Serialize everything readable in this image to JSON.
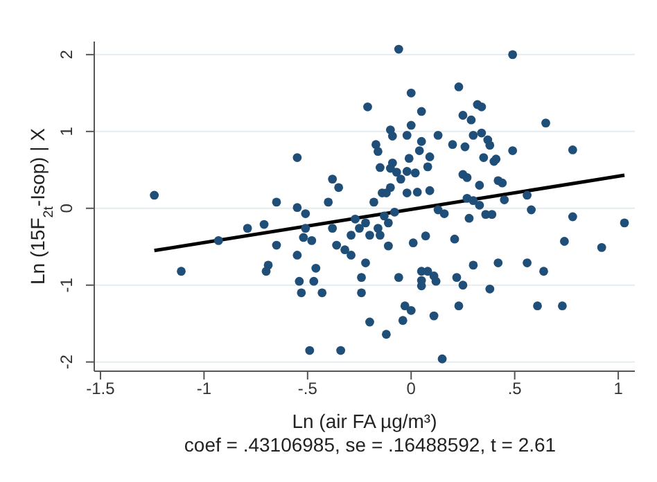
{
  "chart_data": {
    "type": "scatter",
    "xlabel": "Ln (air FA µg/m³)",
    "ylabel": "Ln (15F$_{2t}$-Isop) | X",
    "annotations": [
      "coef = .43106985, se = .16488592, t = 2.61"
    ],
    "xlim": [
      -1.53,
      1.08
    ],
    "xticks": [
      -1.5,
      -1,
      {
        "value": -0.5,
        "label": "-.5"
      },
      0,
      {
        "value": 0.5,
        "label": ".5"
      },
      1
    ],
    "ylim": [
      -2.12,
      2.17
    ],
    "yticks": [
      -2,
      -1,
      0,
      1,
      2
    ],
    "grid": "y",
    "series": [
      {
        "marker": "circle",
        "color": "#1f4e79",
        "x": [
          -1.24,
          -1.11,
          -0.93,
          -0.79,
          -0.71,
          -0.69,
          -0.7,
          -0.65,
          -0.65,
          -0.55,
          -0.55,
          -0.55,
          -0.54,
          -0.53,
          -0.52,
          -0.51,
          -0.51,
          -0.49,
          -0.48,
          -0.47,
          -0.46,
          -0.43,
          -0.4,
          -0.38,
          -0.38,
          -0.35,
          -0.36,
          -0.34,
          -0.32,
          -0.29,
          -0.29,
          -0.27,
          -0.25,
          -0.24,
          -0.24,
          -0.22,
          -0.22,
          -0.21,
          -0.2,
          -0.2,
          -0.18,
          -0.17,
          -0.16,
          -0.16,
          -0.15,
          -0.15,
          -0.14,
          -0.13,
          -0.12,
          -0.11,
          -0.12,
          -0.11,
          -0.1,
          -0.1,
          -0.1,
          -0.09,
          -0.09,
          -0.08,
          -0.07,
          -0.06,
          -0.06,
          -0.05,
          -0.04,
          -0.03,
          -0.02,
          -0.02,
          -0.02,
          -0.01,
          0,
          0,
          0,
          0.01,
          0.02,
          0.03,
          0.04,
          0.05,
          0.05,
          0.05,
          0.05,
          0.05,
          0.07,
          0.08,
          0.08,
          0.09,
          0.09,
          0.11,
          0.11,
          0.12,
          0.13,
          0.13,
          0.16,
          0.15,
          0.2,
          0.21,
          0.22,
          0.23,
          0.23,
          0.25,
          0.25,
          0.25,
          0.26,
          0.27,
          0.27,
          0.28,
          0.29,
          0.3,
          0.3,
          0.3,
          0.32,
          0.33,
          0.33,
          0.34,
          0.34,
          0.35,
          0.36,
          0.37,
          0.38,
          0.38,
          0.39,
          0.4,
          0.41,
          0.42,
          0.42,
          0.44,
          0.45,
          0.49,
          0.49,
          0.56,
          0.56,
          0.58,
          0.61,
          0.64,
          0.65,
          0.73,
          0.74,
          0.78,
          0.78,
          0.92,
          1.03
        ],
        "values": [
          0.17,
          -0.82,
          -0.42,
          -0.26,
          -0.21,
          -0.74,
          -0.82,
          0.08,
          -0.48,
          0.66,
          0.01,
          -0.61,
          -0.95,
          -1.1,
          -0.38,
          -0.07,
          -0.26,
          -1.85,
          -0.42,
          -0.95,
          -0.78,
          -1.1,
          0.08,
          0.38,
          -0.26,
          0.27,
          -0.48,
          -1.85,
          -0.54,
          -0.61,
          -0.35,
          -0.14,
          -0.26,
          -0.9,
          -1.1,
          -0.19,
          -0.71,
          1.32,
          -0.35,
          -1.48,
          0.08,
          0.83,
          0.74,
          -0.26,
          -0.35,
          0.53,
          0.2,
          -0.1,
          -1.64,
          -0.49,
          0.2,
          -0.19,
          1.02,
          0.27,
          0.52,
          0.94,
          0.59,
          -0.05,
          0.47,
          -0.9,
          2.07,
          0.38,
          -1.46,
          -1.27,
          0.95,
          0.48,
          0.2,
          0.65,
          1.08,
          1.5,
          -1.33,
          -0.45,
          0.46,
          0.21,
          0.75,
          0.87,
          1.26,
          -0.82,
          -0.94,
          -1.01,
          -0.36,
          -0.82,
          0.54,
          0.23,
          0.67,
          -1.4,
          -0.88,
          -0.95,
          0.95,
          -0.02,
          -0.07,
          -1.96,
          0.83,
          -0.4,
          -0.9,
          1.58,
          -1.27,
          1.21,
          -1,
          0.44,
          0.8,
          0.4,
          0.13,
          -0.13,
          1.15,
          0.1,
          -0.74,
          0.95,
          1.35,
          0.3,
          0.04,
          0.98,
          1.32,
          0.66,
          -0.08,
          0.89,
          -1.05,
          0.82,
          -0.08,
          0.61,
          0.64,
          0.36,
          -0.71,
          0.33,
          0.11,
          0.75,
          2,
          0.17,
          -0.71,
          -0.02,
          -1.27,
          -0.82,
          1.11,
          -1.27,
          -0.43,
          -0.11,
          0.76,
          -0.51,
          -0.19
        ]
      },
      {
        "type": "line",
        "marker": "none",
        "color": "#000000",
        "x": [
          -1.24,
          1.03
        ],
        "values": [
          -0.55,
          0.43
        ]
      }
    ]
  }
}
